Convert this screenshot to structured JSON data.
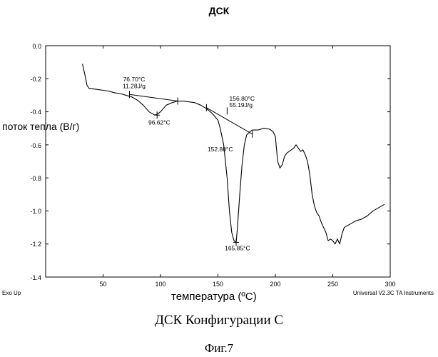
{
  "chart_data": {
    "type": "line",
    "title": "ДСК",
    "xlabel": "температура (ºС)",
    "ylabel": "поток тепла (В/г)",
    "xlim": [
      0,
      300
    ],
    "ylim": [
      -1.4,
      0.0
    ],
    "x_ticks": [
      0,
      50,
      100,
      150,
      200,
      250,
      300
    ],
    "y_ticks": [
      0.0,
      -0.2,
      -0.4,
      -0.6,
      -0.8,
      -1.0,
      -1.2,
      -1.4
    ],
    "y_tick_labels": [
      "0.0",
      "-0.2",
      "-0.4",
      "-0.6",
      "-0.8",
      "-1.0",
      "-1.2",
      "-1.4"
    ],
    "corner_left": "Exo Up",
    "corner_right": "Universal V2.3C TA Instruments",
    "series": [
      {
        "x": [
          32,
          34,
          36,
          38,
          40,
          45,
          50,
          55,
          60,
          65,
          70,
          75,
          80,
          85,
          90,
          95,
          97,
          100,
          105,
          110,
          115,
          120,
          125,
          130,
          135,
          140,
          145,
          150,
          152,
          155,
          158,
          160,
          162,
          164,
          165.85,
          167,
          169,
          171,
          173,
          175,
          178,
          180,
          185,
          190,
          195,
          198,
          200,
          202,
          204,
          206,
          208,
          210,
          212,
          214,
          216,
          218,
          220,
          222,
          224,
          226,
          228,
          230,
          232,
          234,
          236,
          238,
          240,
          242,
          244,
          246,
          248,
          250,
          252,
          254,
          256,
          258,
          260,
          265,
          270,
          275,
          280,
          285,
          290,
          295
        ],
        "y": [
          -0.11,
          -0.17,
          -0.24,
          -0.26,
          -0.26,
          -0.265,
          -0.27,
          -0.275,
          -0.285,
          -0.29,
          -0.3,
          -0.31,
          -0.33,
          -0.36,
          -0.4,
          -0.42,
          -0.415,
          -0.4,
          -0.36,
          -0.345,
          -0.335,
          -0.335,
          -0.34,
          -0.345,
          -0.36,
          -0.38,
          -0.41,
          -0.45,
          -0.5,
          -0.6,
          -0.8,
          -1.0,
          -1.13,
          -1.18,
          -1.19,
          -1.1,
          -0.9,
          -0.72,
          -0.6,
          -0.54,
          -0.52,
          -0.51,
          -0.51,
          -0.5,
          -0.505,
          -0.52,
          -0.55,
          -0.7,
          -0.74,
          -0.72,
          -0.67,
          -0.65,
          -0.64,
          -0.63,
          -0.62,
          -0.6,
          -0.62,
          -0.64,
          -0.63,
          -0.66,
          -0.7,
          -0.78,
          -0.9,
          -0.97,
          -1.01,
          -1.03,
          -1.07,
          -1.1,
          -1.13,
          -1.18,
          -1.17,
          -1.18,
          -1.2,
          -1.17,
          -1.2,
          -1.14,
          -1.1,
          -1.08,
          -1.06,
          -1.05,
          -1.03,
          -1.0,
          -0.98,
          -0.96
        ]
      }
    ],
    "baselines": [
      {
        "x": [
          73,
          115
        ],
        "y": [
          -0.295,
          -0.335
        ]
      },
      {
        "x": [
          140,
          180
        ],
        "y": [
          -0.375,
          -0.535
        ]
      }
    ],
    "line_markers": [
      {
        "x": 73,
        "y": -0.295
      },
      {
        "x": 115,
        "y": -0.335
      },
      {
        "x": 140,
        "y": -0.375
      },
      {
        "x": 158,
        "y": -0.395
      },
      {
        "x": 180,
        "y": -0.535
      }
    ],
    "peak_markers": [
      {
        "x": 97,
        "y": -0.42
      },
      {
        "x": 165.85,
        "y": -1.19
      }
    ],
    "annotations": [
      {
        "text": "76.70°C",
        "x": 77.0,
        "y": -0.215
      },
      {
        "text": "11.28J/g",
        "x": 77.0,
        "y": -0.258
      },
      {
        "text": "96.62°C",
        "x": 99.0,
        "y": -0.478
      },
      {
        "text": "156.80°C",
        "x": 171.0,
        "y": -0.332
      },
      {
        "text": "55.19J/g",
        "x": 170.0,
        "y": -0.372
      },
      {
        "text": "152.88°C",
        "x": 152.0,
        "y": -0.64
      },
      {
        "text": "165.85°C",
        "x": 167.0,
        "y": -1.237
      }
    ]
  },
  "captions": {
    "line1": "ДСК Конфигурации С",
    "line2": "Фиг.7"
  }
}
